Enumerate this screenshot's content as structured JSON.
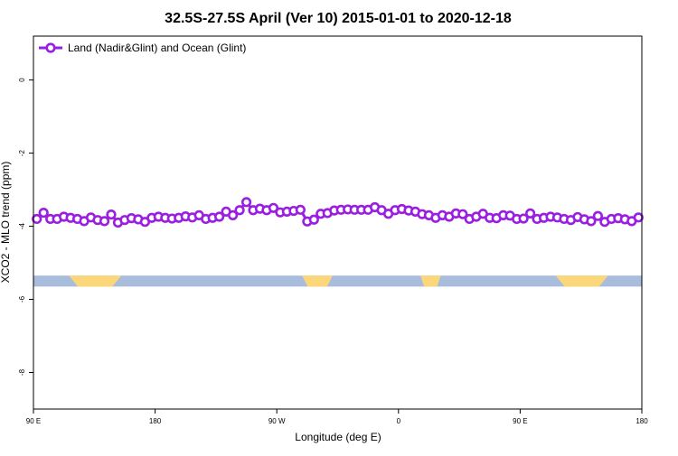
{
  "chart_data": {
    "type": "line",
    "title": "32.5S-27.5S April (Ver 10)   2015-01-01 to 2020-12-18",
    "xlabel": "Longitude (deg E)",
    "ylabel": "XCO2 - MLO trend (ppm)",
    "xlim": [
      90,
      450
    ],
    "ylim": [
      -9.0,
      1.2
    ],
    "x_ticks": [
      {
        "value": 90,
        "label": "90 E"
      },
      {
        "value": 162,
        "label": "180"
      },
      {
        "value": 234,
        "label": "90 W"
      },
      {
        "value": 306,
        "label": "0"
      },
      {
        "value": 378,
        "label": "90 E"
      },
      {
        "value": 450,
        "label": "180"
      }
    ],
    "y_ticks": [
      {
        "value": 0,
        "label": "0"
      },
      {
        "value": -2,
        "label": "-2"
      },
      {
        "value": -4,
        "label": "-4"
      },
      {
        "value": -6,
        "label": "-6"
      },
      {
        "value": -8,
        "label": "-8"
      }
    ],
    "grid": false,
    "legend": {
      "position": "top-left",
      "label": "Land (Nadir&Glint) and Ocean (Glint)"
    },
    "colors": {
      "series": "#9a1fe0",
      "ocean": "#a8bcdc",
      "land": "#fcd77a"
    },
    "surface_band": {
      "y_range": [
        -5.65,
        -5.35
      ],
      "land_segments": [
        [
          111,
          142
        ],
        [
          249,
          267
        ],
        [
          319,
          331
        ],
        [
          399,
          430
        ]
      ]
    },
    "series": [
      {
        "name": "Land (Nadir&Glint) and Ocean (Glint)",
        "x": [
          92,
          96,
          100,
          104,
          108,
          112,
          116,
          120,
          124,
          128,
          132,
          136,
          140,
          144,
          148,
          152,
          156,
          160,
          164,
          168,
          172,
          176,
          180,
          184,
          188,
          192,
          196,
          200,
          204,
          208,
          212,
          216,
          220,
          224,
          228,
          232,
          236,
          240,
          244,
          248,
          252,
          256,
          260,
          264,
          268,
          272,
          276,
          280,
          284,
          288,
          292,
          296,
          300,
          304,
          308,
          312,
          316,
          320,
          324,
          328,
          332,
          336,
          340,
          344,
          348,
          352,
          356,
          360,
          364,
          368,
          372,
          376,
          380,
          384,
          388,
          392,
          396,
          400,
          404,
          408,
          412,
          416,
          420,
          424,
          428,
          432,
          436,
          440,
          444,
          448
        ],
        "y": [
          -3.8,
          -3.63,
          -3.8,
          -3.8,
          -3.74,
          -3.77,
          -3.8,
          -3.86,
          -3.76,
          -3.83,
          -3.86,
          -3.68,
          -3.9,
          -3.83,
          -3.78,
          -3.81,
          -3.88,
          -3.77,
          -3.74,
          -3.77,
          -3.79,
          -3.77,
          -3.73,
          -3.76,
          -3.7,
          -3.8,
          -3.77,
          -3.74,
          -3.6,
          -3.7,
          -3.56,
          -3.34,
          -3.56,
          -3.52,
          -3.56,
          -3.5,
          -3.62,
          -3.6,
          -3.58,
          -3.55,
          -3.87,
          -3.82,
          -3.66,
          -3.64,
          -3.57,
          -3.55,
          -3.54,
          -3.55,
          -3.55,
          -3.55,
          -3.48,
          -3.56,
          -3.66,
          -3.56,
          -3.53,
          -3.57,
          -3.6,
          -3.67,
          -3.7,
          -3.77,
          -3.7,
          -3.74,
          -3.65,
          -3.67,
          -3.8,
          -3.74,
          -3.66,
          -3.77,
          -3.78,
          -3.7,
          -3.71,
          -3.8,
          -3.79,
          -3.65,
          -3.8,
          -3.77,
          -3.74,
          -3.76,
          -3.8,
          -3.83,
          -3.75,
          -3.81,
          -3.86,
          -3.72,
          -3.88,
          -3.8,
          -3.78,
          -3.81,
          -3.86,
          -3.76
        ]
      }
    ]
  }
}
